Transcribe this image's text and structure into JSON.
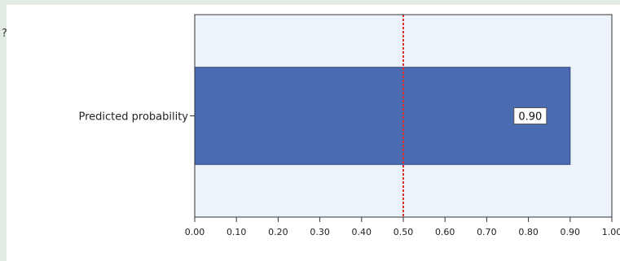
{
  "chart_data": {
    "type": "bar",
    "orientation": "horizontal",
    "categories": [
      "Predicted probability"
    ],
    "values": [
      0.9
    ],
    "data_labels": [
      "0.90"
    ],
    "xlim": [
      0.0,
      1.0
    ],
    "x_ticks": [
      0.0,
      0.1,
      0.2,
      0.3,
      0.4,
      0.5,
      0.6,
      0.7,
      0.8,
      0.9,
      1.0
    ],
    "x_tick_labels": [
      "0.00",
      "0.10",
      "0.20",
      "0.30",
      "0.40",
      "0.50",
      "0.60",
      "0.70",
      "0.80",
      "0.90",
      "1.00"
    ],
    "reference_line": {
      "x": 0.5,
      "style": "dashed"
    },
    "grid": false,
    "colors": {
      "page_background": "#e3ece3",
      "figure_background": "#ffffff",
      "plot_background": "#edf3fa",
      "bar_fill": "#4a6ab2",
      "bar_stroke": "#30477e",
      "reference_line": "#e0302a",
      "axis": "#333333",
      "data_label_box": "#ffffff"
    }
  }
}
